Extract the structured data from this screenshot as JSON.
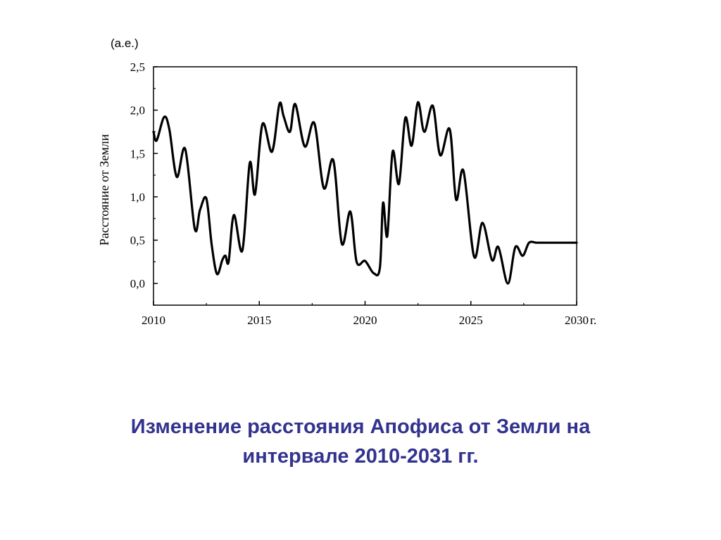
{
  "caption": {
    "line1": "Изменение расстояния Апофиса от Земли на",
    "line2": "интервале 2010-2031 гг."
  },
  "chart_data": {
    "type": "line",
    "y_unit": "(а.е.)",
    "ylabel": "Расстояние от Земли",
    "x_unit": "г.",
    "xlim": [
      2010,
      2030
    ],
    "ylim": [
      -0.25,
      2.5
    ],
    "x_ticks": [
      "2010",
      "2015",
      "2020",
      "2025",
      "2030"
    ],
    "y_ticks": [
      "0,0",
      "0,5",
      "1,0",
      "1,5",
      "2,0",
      "2,5"
    ],
    "y_tick_values": [
      0,
      0.5,
      1.0,
      1.5,
      2.0,
      2.5
    ],
    "x_tick_values": [
      2010,
      2015,
      2020,
      2025,
      2030
    ],
    "line_color": "#000000",
    "grid": false,
    "series": [
      {
        "x": [
          2010.0,
          2010.15,
          2010.5,
          2010.75,
          2011.1,
          2011.5,
          2011.95,
          2012.2,
          2012.5,
          2012.75,
          2013.0,
          2013.25,
          2013.4,
          2013.55,
          2013.8,
          2014.2,
          2014.55,
          2014.8,
          2015.15,
          2015.6,
          2015.95,
          2016.15,
          2016.45,
          2016.7,
          2017.15,
          2017.6,
          2018.05,
          2018.5,
          2018.9,
          2019.3,
          2019.6,
          2020.0,
          2020.4,
          2020.7,
          2020.85,
          2021.05,
          2021.3,
          2021.6,
          2021.9,
          2022.2,
          2022.5,
          2022.8,
          2023.2,
          2023.55,
          2024.0,
          2024.3,
          2024.65,
          2025.15,
          2025.55,
          2026.0,
          2026.3,
          2026.75,
          2027.1,
          2027.45,
          2027.75,
          2028.1,
          2028.4,
          2028.75,
          2028.95,
          2029.25,
          2029.55,
          2029.85,
          2030.0
        ],
        "y": [
          1.75,
          1.65,
          1.92,
          1.78,
          1.23,
          1.55,
          0.63,
          0.85,
          0.98,
          0.45,
          0.11,
          0.27,
          0.32,
          0.25,
          0.79,
          0.38,
          1.39,
          1.03,
          1.84,
          1.52,
          2.07,
          1.93,
          1.75,
          2.07,
          1.58,
          1.85,
          1.1,
          1.42,
          0.46,
          0.83,
          0.25,
          0.26,
          0.12,
          0.18,
          0.93,
          0.55,
          1.52,
          1.15,
          1.91,
          1.59,
          2.09,
          1.75,
          2.05,
          1.48,
          1.78,
          0.97,
          1.3,
          0.31,
          0.7,
          0.27,
          0.42,
          0.0,
          0.42,
          0.32,
          0.47,
          0.47,
          0.47,
          0.47,
          0.47,
          0.47,
          0.47,
          0.47,
          0.47
        ]
      }
    ]
  }
}
